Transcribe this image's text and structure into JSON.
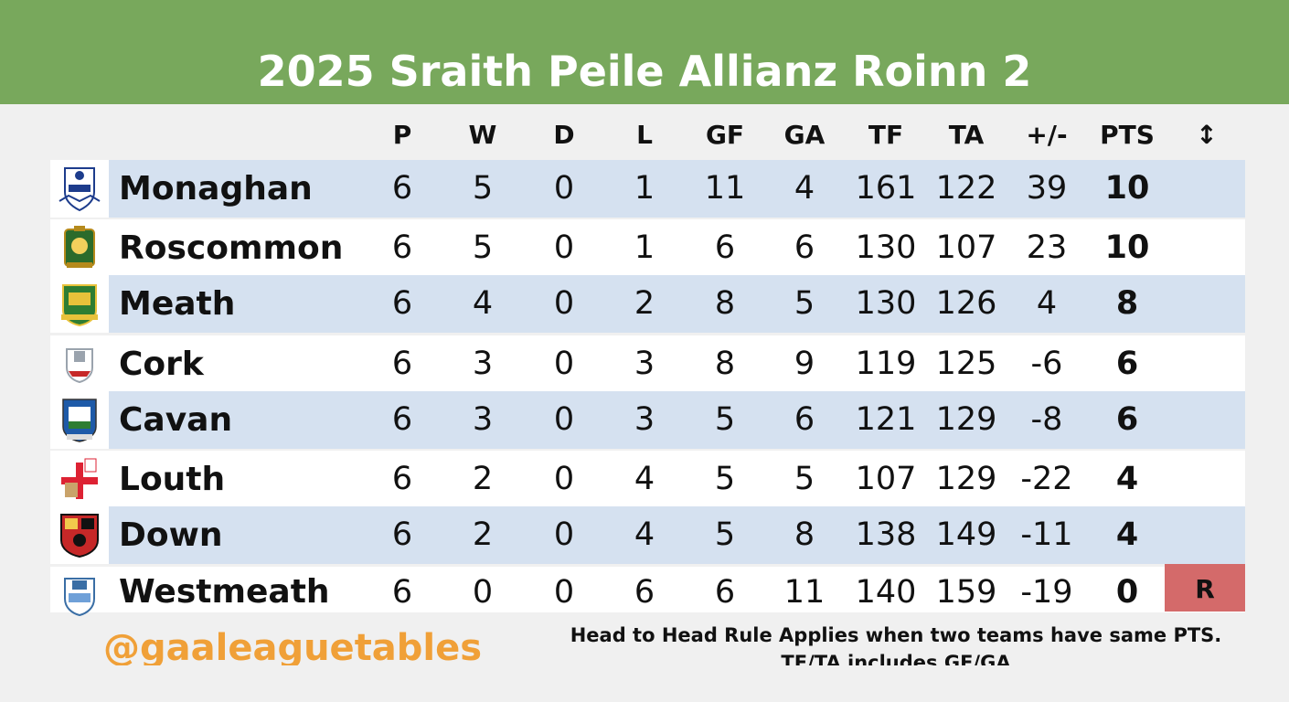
{
  "title": "2025 Sraith Peile Allianz Roinn 2",
  "columns": [
    "P",
    "W",
    "D",
    "L",
    "GF",
    "GA",
    "TF",
    "TA",
    "+/-",
    "PTS",
    "↕"
  ],
  "rows": [
    {
      "team": "Monaghan",
      "crest_icon": "monaghan-crest-icon",
      "P": "6",
      "W": "5",
      "D": "0",
      "L": "1",
      "GF": "11",
      "GA": "4",
      "TF": "161",
      "TA": "122",
      "diff": "39",
      "PTS": "10",
      "status": ""
    },
    {
      "team": "Roscommon",
      "crest_icon": "roscommon-crest-icon",
      "P": "6",
      "W": "5",
      "D": "0",
      "L": "1",
      "GF": "6",
      "GA": "6",
      "TF": "130",
      "TA": "107",
      "diff": "23",
      "PTS": "10",
      "status": ""
    },
    {
      "team": "Meath",
      "crest_icon": "meath-crest-icon",
      "P": "6",
      "W": "4",
      "D": "0",
      "L": "2",
      "GF": "8",
      "GA": "5",
      "TF": "130",
      "TA": "126",
      "diff": "4",
      "PTS": "8",
      "status": ""
    },
    {
      "team": "Cork",
      "crest_icon": "cork-crest-icon",
      "P": "6",
      "W": "3",
      "D": "0",
      "L": "3",
      "GF": "8",
      "GA": "9",
      "TF": "119",
      "TA": "125",
      "diff": "-6",
      "PTS": "6",
      "status": ""
    },
    {
      "team": "Cavan",
      "crest_icon": "cavan-crest-icon",
      "P": "6",
      "W": "3",
      "D": "0",
      "L": "3",
      "GF": "5",
      "GA": "6",
      "TF": "121",
      "TA": "129",
      "diff": "-8",
      "PTS": "6",
      "status": ""
    },
    {
      "team": "Louth",
      "crest_icon": "louth-crest-icon",
      "P": "6",
      "W": "2",
      "D": "0",
      "L": "4",
      "GF": "5",
      "GA": "5",
      "TF": "107",
      "TA": "129",
      "diff": "-22",
      "PTS": "4",
      "status": ""
    },
    {
      "team": "Down",
      "crest_icon": "down-crest-icon",
      "P": "6",
      "W": "2",
      "D": "0",
      "L": "4",
      "GF": "5",
      "GA": "8",
      "TF": "138",
      "TA": "149",
      "diff": "-11",
      "PTS": "4",
      "status": ""
    },
    {
      "team": "Westmeath",
      "crest_icon": "westmeath-crest-icon",
      "P": "6",
      "W": "0",
      "D": "0",
      "L": "6",
      "GF": "6",
      "GA": "11",
      "TF": "140",
      "TA": "159",
      "diff": "-19",
      "PTS": "0",
      "status": "R"
    }
  ],
  "footer": {
    "handle": "@gaaleaguetables",
    "note_line1": "Head to Head Rule Applies when two teams have same PTS.",
    "note_line2": "TF/TA includes GF/GA"
  },
  "colors": {
    "banner": "#78a85c",
    "row_shaded": "#d5e1f0",
    "row_plain": "#ffffff",
    "relegation": "#d46a6a",
    "handle": "#f0a038"
  }
}
